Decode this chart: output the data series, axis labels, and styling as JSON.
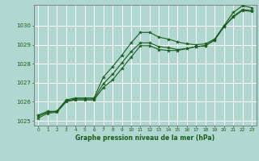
{
  "title": "Graphe pression niveau de la mer (hPa)",
  "bg_color": "#b0d8d0",
  "grid_color": "#ffffff",
  "line_color": "#1a5c1a",
  "marker_color": "#1a5c1a",
  "xlim": [
    -0.5,
    23.5
  ],
  "ylim": [
    1024.75,
    1031.1
  ],
  "yticks": [
    1025,
    1026,
    1027,
    1028,
    1029,
    1030
  ],
  "xticks": [
    0,
    1,
    2,
    3,
    4,
    5,
    6,
    7,
    8,
    9,
    10,
    11,
    12,
    13,
    14,
    15,
    16,
    17,
    18,
    19,
    20,
    21,
    22,
    23
  ],
  "series1_x": [
    0,
    1,
    2,
    3,
    4,
    5,
    6,
    7,
    8,
    9,
    10,
    11,
    12,
    13,
    14,
    15,
    16,
    17,
    18,
    19,
    20,
    21,
    22,
    23
  ],
  "series1_y": [
    1025.3,
    1025.5,
    1025.5,
    1026.1,
    1026.2,
    1026.2,
    1026.2,
    1027.3,
    1027.85,
    1028.45,
    1029.1,
    1029.65,
    1029.65,
    1029.4,
    1029.3,
    1029.15,
    1029.05,
    1029.0,
    1029.05,
    1029.3,
    1030.0,
    1030.7,
    1031.05,
    1030.95
  ],
  "series2_x": [
    0,
    1,
    2,
    3,
    4,
    5,
    6,
    7,
    8,
    9,
    10,
    11,
    12,
    13,
    14,
    15,
    16,
    17,
    18,
    19,
    20,
    21,
    22,
    23
  ],
  "series2_y": [
    1025.15,
    1025.4,
    1025.45,
    1026.0,
    1026.1,
    1026.1,
    1026.1,
    1026.75,
    1027.15,
    1027.75,
    1028.35,
    1028.95,
    1028.95,
    1028.75,
    1028.7,
    1028.7,
    1028.8,
    1028.9,
    1028.95,
    1029.25,
    1029.95,
    1030.45,
    1030.8,
    1030.75
  ],
  "series3_x": [
    0,
    1,
    2,
    3,
    4,
    5,
    6,
    7,
    8,
    9,
    10,
    11,
    12,
    13,
    14,
    15,
    16,
    17,
    18,
    19,
    20,
    21,
    22,
    23
  ],
  "series3_y": [
    1025.25,
    1025.45,
    1025.5,
    1026.05,
    1026.15,
    1026.15,
    1026.15,
    1026.95,
    1027.45,
    1028.05,
    1028.65,
    1029.1,
    1029.1,
    1028.9,
    1028.85,
    1028.75,
    1028.8,
    1028.9,
    1028.95,
    1029.25,
    1029.95,
    1030.5,
    1030.85,
    1030.8
  ]
}
